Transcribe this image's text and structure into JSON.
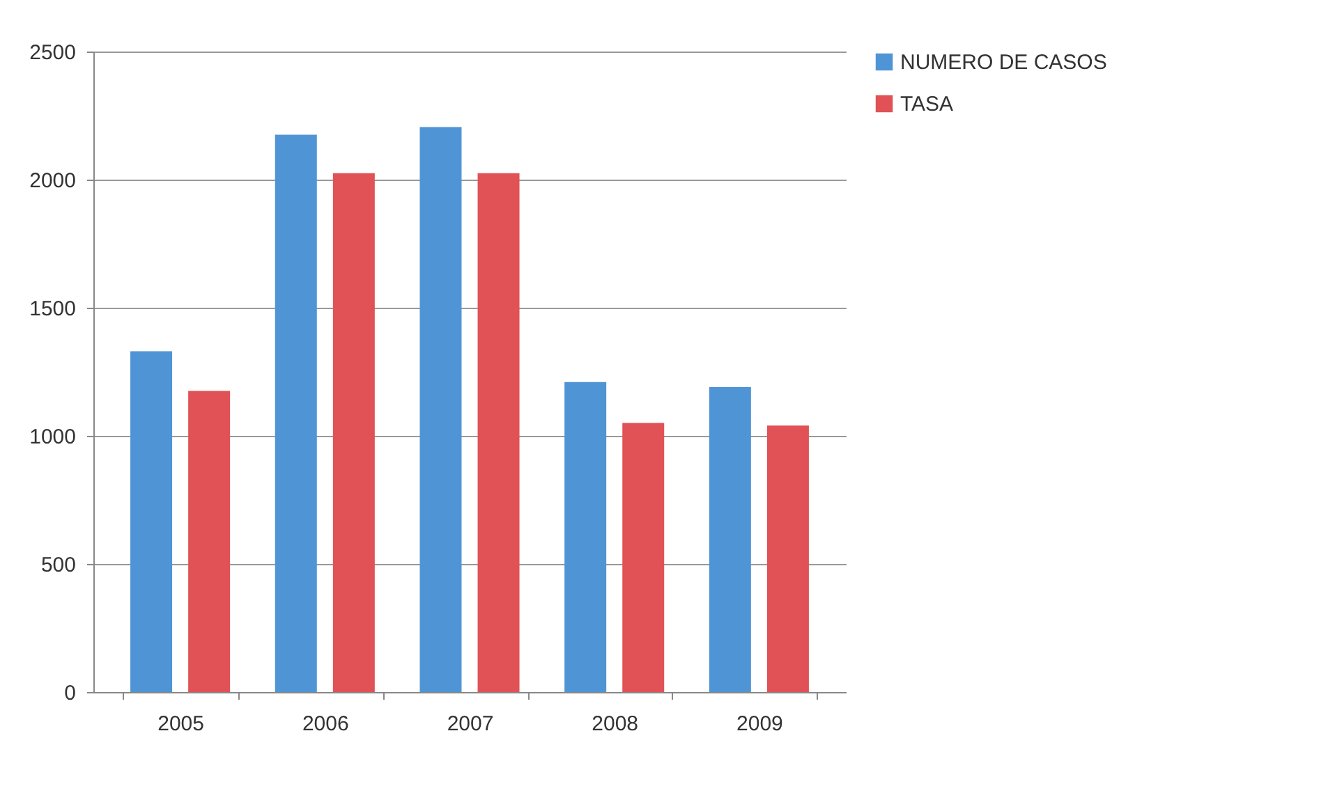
{
  "chart_data": {
    "type": "bar",
    "categories": [
      "2005",
      "2006",
      "2007",
      "2008",
      "2009"
    ],
    "series": [
      {
        "name": "NUMERO DE CASOS",
        "color": "#4f94d4",
        "values": [
          1330,
          2175,
          2205,
          1210,
          1190
        ]
      },
      {
        "name": "TASA",
        "color": "#e05255",
        "values": [
          1175,
          2025,
          2025,
          1050,
          1040
        ]
      }
    ],
    "ylim": [
      0,
      2500
    ],
    "yticks": [
      0,
      500,
      1000,
      1500,
      2000,
      2500
    ],
    "grid": "y",
    "legend": "right"
  }
}
